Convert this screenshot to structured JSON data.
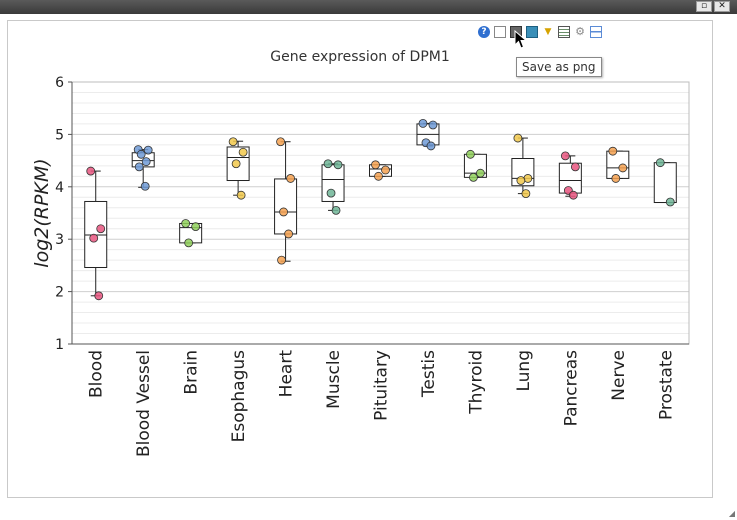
{
  "window": {
    "restore_glyph": "▫",
    "close_glyph": "✕"
  },
  "toolbar": {
    "icons": [
      "help-icon",
      "export-pdf-icon",
      "save-png-icon",
      "save-svg-icon",
      "filter-icon",
      "table-icon",
      "settings-icon",
      "layout-icon"
    ],
    "help_glyph": "?",
    "filter_glyph": "▼",
    "settings_glyph": "⚙"
  },
  "tooltip": {
    "text": "Save as png"
  },
  "colors": {
    "axis": "#555555",
    "grid_major": "#cfcfcf",
    "grid_minor": "#ececec",
    "box_stroke": "#222222"
  },
  "chart_data": {
    "type": "box",
    "title": "Gene expression of DPM1",
    "ylabel": "log2(RPKM)",
    "xlabel": "",
    "ylim": [
      1,
      6
    ],
    "yticks": [
      1,
      2,
      3,
      4,
      5,
      6
    ],
    "grid": true,
    "legend": "none",
    "categories": [
      "Blood",
      "Blood Vessel",
      "Brain",
      "Esophagus",
      "Heart",
      "Muscle",
      "Pituitary",
      "Testis",
      "Thyroid",
      "Lung",
      "Pancreas",
      "Nerve",
      "Prostate"
    ],
    "boxes": [
      {
        "category": "Blood",
        "min": 1.92,
        "q1": 2.46,
        "median": 3.08,
        "q3": 3.72,
        "max": 4.3,
        "color": "#e8557f",
        "points": [
          4.3,
          3.2,
          3.02,
          1.92
        ]
      },
      {
        "category": "Blood Vessel",
        "min": 3.99,
        "q1": 4.38,
        "median": 4.5,
        "q3": 4.65,
        "max": 4.71,
        "color": "#6f9ad6",
        "points": [
          4.71,
          4.7,
          4.62,
          4.48,
          4.38,
          4.01
        ]
      },
      {
        "category": "Brain",
        "min": 2.93,
        "q1": 2.93,
        "median": 3.22,
        "q3": 3.3,
        "max": 3.3,
        "color": "#8fcf5a",
        "points": [
          3.3,
          3.24,
          2.93
        ]
      },
      {
        "category": "Esophagus",
        "min": 3.84,
        "q1": 4.12,
        "median": 4.56,
        "q3": 4.76,
        "max": 4.87,
        "color": "#f1c84b",
        "points": [
          4.86,
          4.66,
          4.44,
          3.84
        ]
      },
      {
        "category": "Heart",
        "min": 2.58,
        "q1": 3.1,
        "median": 3.52,
        "q3": 4.15,
        "max": 4.86,
        "color": "#f4a150",
        "points": [
          4.86,
          4.16,
          3.52,
          3.1,
          2.6
        ]
      },
      {
        "category": "Muscle",
        "min": 3.55,
        "q1": 3.72,
        "median": 4.14,
        "q3": 4.42,
        "max": 4.44,
        "color": "#6fb596",
        "points": [
          4.44,
          4.42,
          3.88,
          3.55
        ]
      },
      {
        "category": "Pituitary",
        "min": 4.2,
        "q1": 4.2,
        "median": 4.34,
        "q3": 4.42,
        "max": 4.42,
        "color": "#f4a150",
        "points": [
          4.42,
          4.32,
          4.2
        ]
      },
      {
        "category": "Testis",
        "min": 4.78,
        "q1": 4.8,
        "median": 5.0,
        "q3": 5.2,
        "max": 5.21,
        "color": "#6f9ad6",
        "points": [
          5.21,
          5.18,
          4.84,
          4.78
        ]
      },
      {
        "category": "Thyroid",
        "min": 4.18,
        "q1": 4.18,
        "median": 4.26,
        "q3": 4.62,
        "max": 4.62,
        "color": "#8fcf5a",
        "points": [
          4.62,
          4.26,
          4.18
        ]
      },
      {
        "category": "Lung",
        "min": 3.87,
        "q1": 4.02,
        "median": 4.16,
        "q3": 4.54,
        "max": 4.93,
        "color": "#f1c84b",
        "points": [
          4.93,
          4.16,
          4.12,
          3.87
        ]
      },
      {
        "category": "Pancreas",
        "min": 3.82,
        "q1": 3.88,
        "median": 4.12,
        "q3": 4.45,
        "max": 4.59,
        "color": "#e8557f",
        "points": [
          4.59,
          4.38,
          3.93,
          3.84
        ]
      },
      {
        "category": "Nerve",
        "min": 4.16,
        "q1": 4.16,
        "median": 4.36,
        "q3": 4.68,
        "max": 4.68,
        "color": "#f4a150",
        "points": [
          4.68,
          4.36,
          4.16
        ]
      },
      {
        "category": "Prostate",
        "min": 3.7,
        "q1": 3.7,
        "median": 3.7,
        "q3": 4.46,
        "max": 4.46,
        "color": "#6fb596",
        "points": [
          4.46,
          3.71
        ]
      }
    ]
  }
}
